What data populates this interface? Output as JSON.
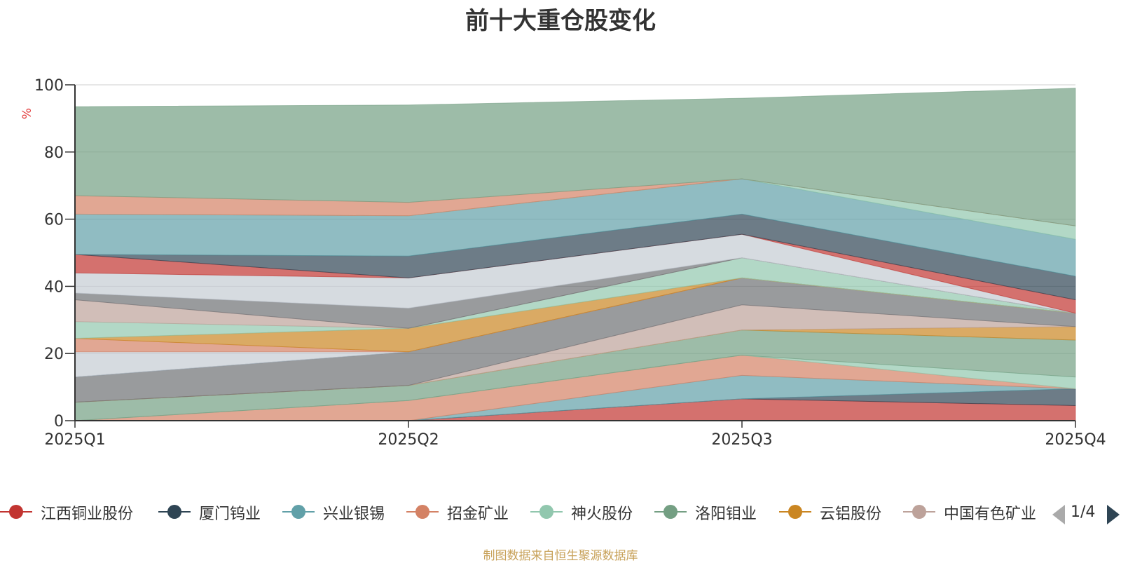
{
  "title": "前十大重仓股变化",
  "source_note": "制图数据来自恒生聚源数据库",
  "pager": {
    "text": "1/4"
  },
  "legend": [
    {
      "label": "江西铜业股份",
      "color": "#c23531"
    },
    {
      "label": "厦门钨业",
      "color": "#2f4554"
    },
    {
      "label": "兴业银锡",
      "color": "#61a0a8"
    },
    {
      "label": "招金矿业",
      "color": "#d48265"
    },
    {
      "label": "神火股份",
      "color": "#91c7ae"
    },
    {
      "label": "洛阳钼业",
      "color": "#749f83"
    },
    {
      "label": "云铝股份",
      "color": "#ca8622"
    },
    {
      "label": "中国有色矿业",
      "color": "#bda29a"
    }
  ],
  "chart_data": {
    "type": "area",
    "stacked": true,
    "categories": [
      "2025Q1",
      "2025Q2",
      "2025Q3",
      "2025Q4"
    ],
    "ylabel": "%",
    "ylim": [
      0,
      100
    ],
    "yticks": [
      0,
      20,
      40,
      60,
      80,
      100
    ],
    "grid": true,
    "legend_position": "bottom",
    "series": [
      {
        "name": "江西铜业股份",
        "color": "#c23531",
        "values": [
          0,
          0,
          6.5,
          4.5
        ]
      },
      {
        "name": "厦门钨业",
        "color": "#2f4554",
        "values": [
          0,
          0,
          0,
          5
        ]
      },
      {
        "name": "兴业银锡",
        "color": "#61a0a8",
        "values": [
          0,
          0,
          7,
          0
        ]
      },
      {
        "name": "招金矿业",
        "color": "#d48265",
        "values": [
          0,
          6,
          6,
          0
        ]
      },
      {
        "name": "神火股份",
        "color": "#91c7ae",
        "values": [
          0,
          0,
          0,
          3.5
        ]
      },
      {
        "name": "洛阳钼业",
        "color": "#749f83",
        "values": [
          5.5,
          4.5,
          7.5,
          11
        ]
      },
      {
        "name": "云铝股份",
        "color": "#ca8622",
        "values": [
          0,
          0,
          0,
          4
        ]
      },
      {
        "name": "中国有色矿业",
        "color": "#bda29a",
        "values": [
          0,
          0,
          7.5,
          0
        ]
      },
      {
        "color": "#6e7074",
        "values": [
          7.5,
          10,
          8,
          4
        ]
      },
      {
        "color": "#546570",
        "values": [
          0,
          0,
          0,
          0
        ]
      },
      {
        "color": "#c4ccd3",
        "values": [
          7.5,
          0,
          0,
          0
        ]
      },
      {
        "color": "#d48265",
        "values": [
          4,
          0,
          0,
          0
        ]
      },
      {
        "color": "#ca8622",
        "values": [
          0,
          7,
          0,
          0
        ]
      },
      {
        "color": "#91c7ae",
        "values": [
          5,
          0,
          6,
          0
        ]
      },
      {
        "color": "#bda29a",
        "values": [
          6.5,
          0,
          0,
          0
        ]
      },
      {
        "color": "#6e7074",
        "values": [
          2,
          6,
          0,
          0
        ]
      },
      {
        "color": "#c4ccd3",
        "values": [
          6,
          9,
          7,
          0
        ]
      },
      {
        "color": "#c23531",
        "values": [
          5.5,
          0,
          0,
          4
        ]
      },
      {
        "color": "#2f4554",
        "values": [
          0,
          6.5,
          6,
          7
        ]
      },
      {
        "color": "#61a0a8",
        "values": [
          12,
          12,
          10.5,
          11
        ]
      },
      {
        "color": "#91c7ae",
        "values": [
          0,
          0,
          0,
          4
        ]
      },
      {
        "color": "#d48265",
        "values": [
          5.5,
          4,
          0,
          0
        ]
      },
      {
        "color": "#749f83",
        "values": [
          26.5,
          29,
          24,
          41
        ]
      }
    ]
  }
}
